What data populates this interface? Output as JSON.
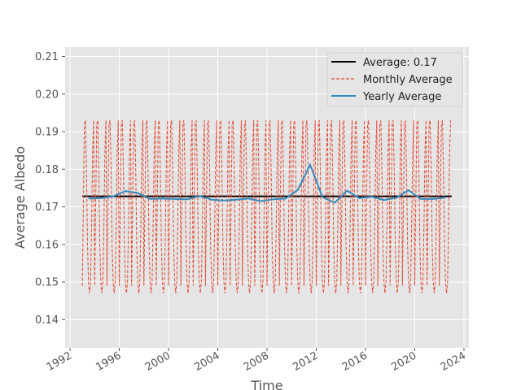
{
  "chart_data": {
    "type": "line",
    "xlabel": "Time",
    "ylabel": "Average Albedo",
    "xlim": [
      1991.6,
      2024.4
    ],
    "ylim": [
      0.1325,
      0.2125
    ],
    "x_ticks": [
      1992,
      1996,
      2000,
      2004,
      2008,
      2012,
      2016,
      2020,
      2024
    ],
    "x_tick_labels": [
      "1992",
      "1996",
      "2000",
      "2004",
      "2008",
      "2012",
      "2016",
      "2020",
      "2024"
    ],
    "y_ticks": [
      0.14,
      0.15,
      0.16,
      0.17,
      0.18,
      0.19,
      0.2,
      0.21
    ],
    "y_tick_labels": [
      "0.14",
      "0.15",
      "0.16",
      "0.17",
      "0.18",
      "0.19",
      "0.20",
      "0.21"
    ],
    "grid": true,
    "legend_position": "top-right",
    "series": [
      {
        "name": "Average: 0.17",
        "style": "solid",
        "color": "#000000",
        "x": [
          1993.0,
          2023.0
        ],
        "y": [
          0.1728,
          0.1728
        ]
      },
      {
        "name": "Monthly Average",
        "style": "dashed",
        "color": "#E24A33",
        "cycle_start_year": 1993,
        "cycle_count": 30,
        "monthly_profile": [
          0.149,
          0.171,
          0.192,
          0.193,
          0.18,
          0.16,
          0.15,
          0.147,
          0.15,
          0.165,
          0.185,
          0.193
        ]
      },
      {
        "name": "Yearly Average",
        "style": "solid",
        "color": "#348ABD",
        "x": [
          1993.5,
          1994.5,
          1995.5,
          1996.5,
          1997.5,
          1998.5,
          1999.5,
          2000.5,
          2001.5,
          2002.5,
          2003.5,
          2004.5,
          2005.5,
          2006.5,
          2007.5,
          2008.5,
          2009.5,
          2010.5,
          2011.5,
          2012.5,
          2013.5,
          2014.5,
          2015.5,
          2016.5,
          2017.5,
          2018.5,
          2019.5,
          2020.5,
          2021.5,
          2022.5
        ],
        "y": [
          0.1722,
          0.1723,
          0.1728,
          0.1742,
          0.1737,
          0.1721,
          0.1722,
          0.1721,
          0.172,
          0.1729,
          0.1719,
          0.1717,
          0.1719,
          0.1722,
          0.1715,
          0.172,
          0.1722,
          0.1745,
          0.1812,
          0.1726,
          0.1711,
          0.1743,
          0.1723,
          0.1727,
          0.1718,
          0.1724,
          0.1744,
          0.1721,
          0.1721,
          0.1725
        ]
      }
    ]
  }
}
